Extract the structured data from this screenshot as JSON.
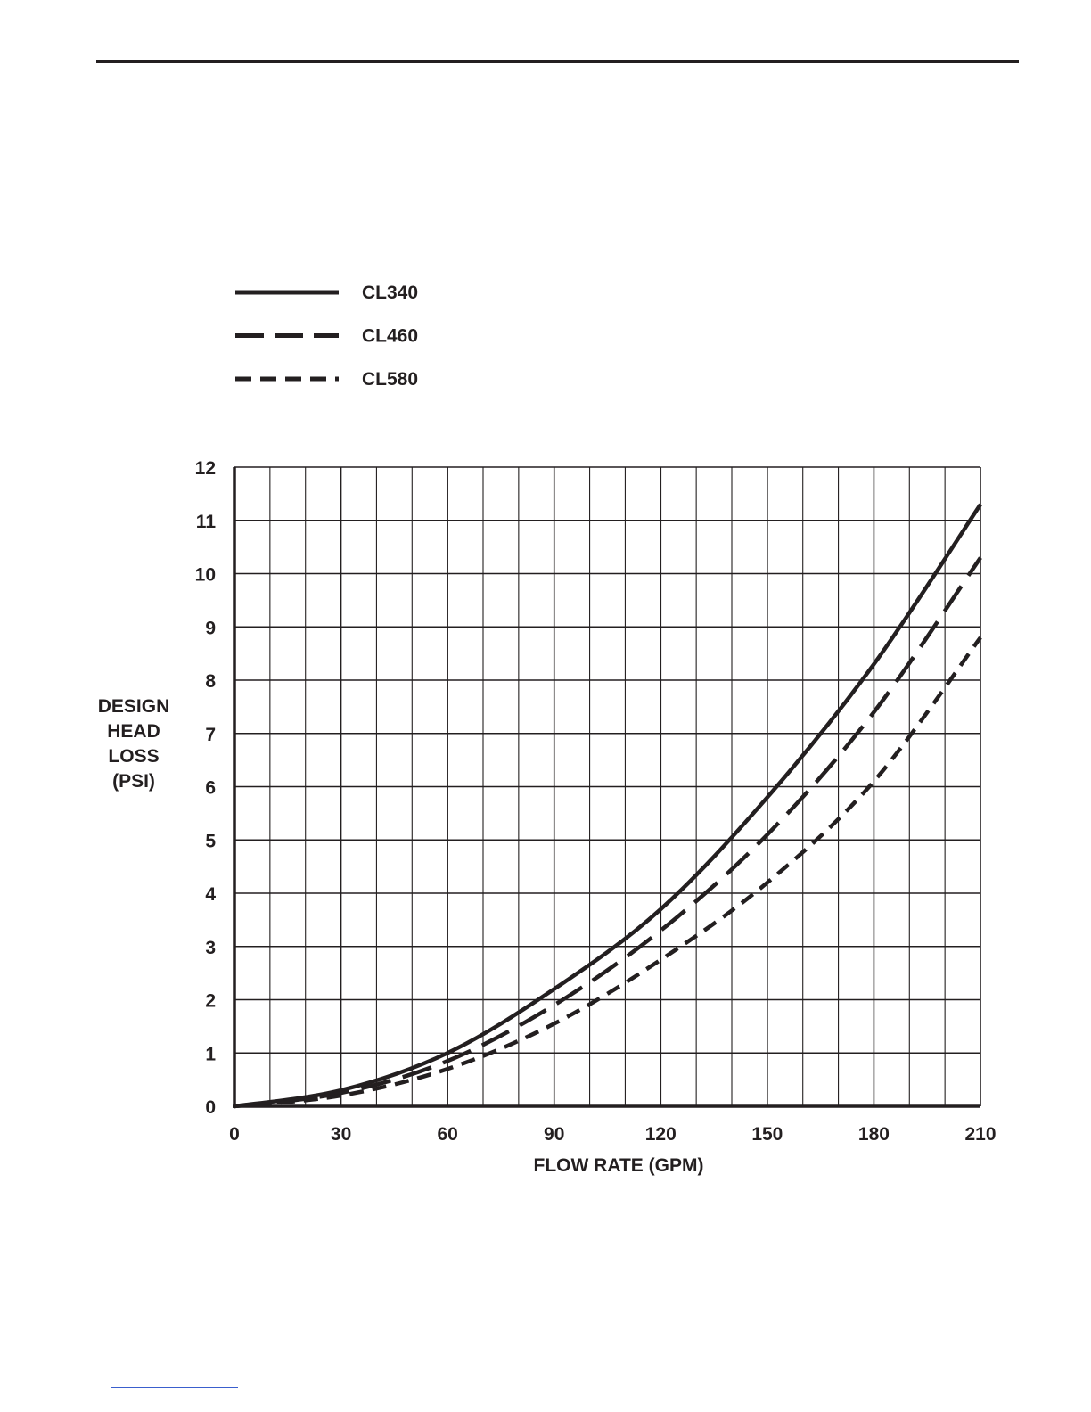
{
  "chart_data": {
    "type": "line",
    "title": "",
    "xlabel": "FLOW RATE (GPM)",
    "ylabel_lines": [
      "DESIGN",
      "HEAD",
      "LOSS",
      "(PSI)"
    ],
    "xlim": [
      0,
      210
    ],
    "ylim": [
      0,
      12
    ],
    "x_ticks": [
      0,
      30,
      60,
      90,
      120,
      150,
      180,
      210
    ],
    "x_tick_labels": [
      "0",
      "30",
      "60",
      "90",
      "120",
      "150",
      "180",
      "210"
    ],
    "y_ticks": [
      0,
      1,
      2,
      3,
      4,
      5,
      6,
      7,
      8,
      9,
      10,
      11,
      12
    ],
    "y_tick_labels": [
      "0",
      "1",
      "2",
      "3",
      "4",
      "5",
      "6",
      "7",
      "8",
      "9",
      "10",
      "11",
      "12"
    ],
    "x_grid_step": 10,
    "y_grid_step": 1,
    "grid": true,
    "legend_position": "top-left",
    "x": [
      0,
      30,
      60,
      90,
      120,
      150,
      180,
      210
    ],
    "series": [
      {
        "name": "CL340",
        "style": "solid",
        "values": [
          0,
          0.3,
          1.0,
          2.2,
          3.7,
          5.8,
          8.3,
          11.3
        ]
      },
      {
        "name": "CL460",
        "style": "long-dashed",
        "values": [
          0,
          0.25,
          0.85,
          1.9,
          3.3,
          5.1,
          7.4,
          10.3
        ]
      },
      {
        "name": "CL580",
        "style": "short-dashed",
        "values": [
          0,
          0.2,
          0.7,
          1.55,
          2.75,
          4.2,
          6.1,
          8.8
        ]
      }
    ]
  }
}
